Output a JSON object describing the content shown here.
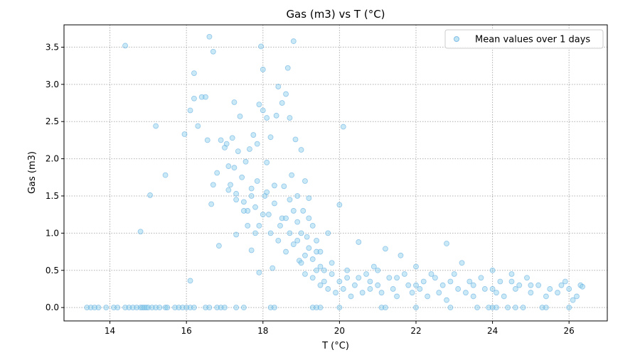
{
  "chart_data": {
    "type": "scatter",
    "title": "Gas (m3) vs T (°C)",
    "xlabel": "T (°C)",
    "ylabel": "Gas (m3)",
    "xlim": [
      12.8,
      27.0
    ],
    "ylim": [
      -0.18,
      3.8
    ],
    "xticks": [
      "14",
      "16",
      "18",
      "20",
      "22",
      "24",
      "26"
    ],
    "yticks": [
      "0.0",
      "0.5",
      "1.0",
      "1.5",
      "2.0",
      "2.5",
      "3.0",
      "3.5"
    ],
    "xtick_values": [
      14,
      16,
      18,
      20,
      22,
      24,
      26
    ],
    "ytick_values": [
      0.0,
      0.5,
      1.0,
      1.5,
      2.0,
      2.5,
      3.0,
      3.5
    ],
    "grid": true,
    "legend_position": "top-right",
    "marker_color": "#87CEEB",
    "marker_edge_color": "#5aa7dd",
    "series": [
      {
        "name": "Mean values over 1 days",
        "points": [
          [
            13.4,
            0
          ],
          [
            13.5,
            0
          ],
          [
            13.6,
            0
          ],
          [
            13.7,
            0
          ],
          [
            13.9,
            0
          ],
          [
            14.1,
            0
          ],
          [
            14.2,
            0
          ],
          [
            14.4,
            0
          ],
          [
            14.5,
            0
          ],
          [
            14.6,
            0
          ],
          [
            14.7,
            0
          ],
          [
            14.8,
            0
          ],
          [
            14.85,
            0
          ],
          [
            14.9,
            0
          ],
          [
            14.95,
            0
          ],
          [
            15.0,
            0
          ],
          [
            15.1,
            0
          ],
          [
            15.2,
            0
          ],
          [
            15.3,
            0
          ],
          [
            15.45,
            0
          ],
          [
            15.5,
            0
          ],
          [
            15.7,
            0
          ],
          [
            15.8,
            0
          ],
          [
            15.9,
            0
          ],
          [
            16.0,
            0
          ],
          [
            16.1,
            0
          ],
          [
            16.2,
            0
          ],
          [
            16.5,
            0
          ],
          [
            16.6,
            0
          ],
          [
            16.8,
            0
          ],
          [
            16.9,
            0
          ],
          [
            17.0,
            0
          ],
          [
            17.3,
            0
          ],
          [
            17.5,
            0
          ],
          [
            18.2,
            0
          ],
          [
            18.3,
            0
          ],
          [
            19.3,
            0
          ],
          [
            19.4,
            0
          ],
          [
            19.5,
            0
          ],
          [
            20.0,
            0
          ],
          [
            21.1,
            0
          ],
          [
            21.2,
            0
          ],
          [
            22.0,
            0
          ],
          [
            22.9,
            0
          ],
          [
            23.6,
            0
          ],
          [
            23.9,
            0
          ],
          [
            24.0,
            0
          ],
          [
            24.1,
            0
          ],
          [
            24.4,
            0
          ],
          [
            24.6,
            0
          ],
          [
            24.8,
            0
          ],
          [
            25.3,
            0
          ],
          [
            25.4,
            0
          ],
          [
            26.0,
            0
          ],
          [
            14.4,
            3.52
          ],
          [
            14.8,
            1.02
          ],
          [
            15.05,
            1.51
          ],
          [
            15.2,
            2.44
          ],
          [
            15.45,
            1.78
          ],
          [
            15.95,
            2.33
          ],
          [
            16.1,
            0.36
          ],
          [
            16.1,
            2.65
          ],
          [
            16.2,
            3.15
          ],
          [
            16.2,
            2.81
          ],
          [
            16.3,
            2.44
          ],
          [
            16.4,
            2.83
          ],
          [
            16.5,
            2.83
          ],
          [
            16.55,
            2.25
          ],
          [
            16.6,
            3.64
          ],
          [
            16.65,
            1.39
          ],
          [
            16.7,
            1.65
          ],
          [
            16.7,
            3.44
          ],
          [
            16.8,
            1.81
          ],
          [
            16.85,
            0.83
          ],
          [
            16.9,
            2.25
          ],
          [
            17.0,
            2.15
          ],
          [
            17.05,
            2.2
          ],
          [
            17.1,
            1.58
          ],
          [
            17.1,
            1.9
          ],
          [
            17.15,
            1.65
          ],
          [
            17.2,
            2.28
          ],
          [
            17.25,
            2.76
          ],
          [
            17.25,
            1.88
          ],
          [
            17.3,
            1.53
          ],
          [
            17.3,
            0.98
          ],
          [
            17.35,
            2.1
          ],
          [
            17.4,
            2.57
          ],
          [
            17.45,
            1.75
          ],
          [
            17.5,
            1.42
          ],
          [
            17.55,
            1.96
          ],
          [
            17.6,
            1.3
          ],
          [
            17.65,
            2.13
          ],
          [
            17.7,
            0.77
          ],
          [
            17.7,
            1.5
          ],
          [
            17.75,
            2.32
          ],
          [
            17.8,
            1.0
          ],
          [
            17.85,
            2.2
          ],
          [
            17.85,
            1.7
          ],
          [
            17.9,
            0.47
          ],
          [
            17.9,
            2.73
          ],
          [
            17.95,
            3.51
          ],
          [
            18.0,
            3.2
          ],
          [
            18.0,
            2.65
          ],
          [
            18.05,
            1.5
          ],
          [
            18.1,
            2.55
          ],
          [
            18.1,
            1.95
          ],
          [
            18.15,
            1.25
          ],
          [
            18.2,
            2.29
          ],
          [
            18.25,
            0.53
          ],
          [
            18.3,
            1.64
          ],
          [
            18.35,
            2.58
          ],
          [
            18.4,
            2.97
          ],
          [
            18.45,
            1.1
          ],
          [
            18.5,
            2.75
          ],
          [
            18.55,
            1.63
          ],
          [
            18.6,
            2.87
          ],
          [
            18.65,
            3.22
          ],
          [
            18.7,
            2.55
          ],
          [
            18.75,
            1.78
          ],
          [
            18.8,
            3.58
          ],
          [
            18.85,
            2.26
          ],
          [
            18.9,
            1.5
          ],
          [
            18.95,
            0.63
          ],
          [
            19.0,
            2.12
          ],
          [
            19.05,
            1.3
          ],
          [
            19.1,
            1.7
          ],
          [
            19.15,
            0.95
          ],
          [
            19.2,
            1.47
          ],
          [
            19.3,
            1.1
          ],
          [
            19.4,
            0.75
          ],
          [
            19.5,
            0.55
          ],
          [
            19.7,
            1.0
          ],
          [
            20.0,
            1.38
          ],
          [
            20.1,
            2.43
          ],
          [
            20.5,
            0.88
          ],
          [
            21.2,
            0.79
          ],
          [
            21.6,
            0.7
          ],
          [
            22.8,
            0.86
          ],
          [
            17.3,
            1.45
          ],
          [
            17.5,
            1.3
          ],
          [
            17.6,
            1.1
          ],
          [
            17.7,
            1.6
          ],
          [
            17.8,
            1.35
          ],
          [
            17.9,
            1.1
          ],
          [
            18.0,
            1.25
          ],
          [
            18.1,
            1.55
          ],
          [
            18.2,
            1.0
          ],
          [
            18.3,
            1.4
          ],
          [
            18.4,
            0.9
          ],
          [
            18.5,
            1.2
          ],
          [
            18.6,
            0.75
          ],
          [
            18.7,
            1.45
          ],
          [
            18.8,
            0.85
          ],
          [
            18.9,
            1.15
          ],
          [
            19.0,
            0.6
          ],
          [
            19.1,
            0.45
          ],
          [
            19.2,
            0.8
          ],
          [
            19.3,
            0.4
          ],
          [
            19.4,
            0.5
          ],
          [
            19.5,
            0.3
          ],
          [
            19.6,
            0.35
          ],
          [
            19.7,
            0.25
          ],
          [
            19.8,
            0.45
          ],
          [
            19.9,
            0.2
          ],
          [
            20.0,
            0.35
          ],
          [
            20.1,
            0.25
          ],
          [
            20.2,
            0.4
          ],
          [
            20.3,
            0.15
          ],
          [
            20.4,
            0.3
          ],
          [
            20.6,
            0.2
          ],
          [
            20.7,
            0.45
          ],
          [
            20.8,
            0.25
          ],
          [
            20.9,
            0.55
          ],
          [
            21.0,
            0.3
          ],
          [
            21.1,
            0.2
          ],
          [
            21.3,
            0.4
          ],
          [
            21.4,
            0.25
          ],
          [
            21.5,
            0.15
          ],
          [
            21.7,
            0.45
          ],
          [
            21.8,
            0.3
          ],
          [
            21.9,
            0.2
          ],
          [
            22.0,
            0.55
          ],
          [
            22.1,
            0.25
          ],
          [
            22.2,
            0.35
          ],
          [
            22.3,
            0.15
          ],
          [
            22.5,
            0.4
          ],
          [
            22.6,
            0.2
          ],
          [
            22.7,
            0.3
          ],
          [
            22.8,
            0.1
          ],
          [
            23.0,
            0.45
          ],
          [
            23.1,
            0.25
          ],
          [
            23.2,
            0.6
          ],
          [
            23.3,
            0.2
          ],
          [
            23.4,
            0.35
          ],
          [
            23.5,
            0.15
          ],
          [
            23.7,
            0.4
          ],
          [
            23.8,
            0.25
          ],
          [
            24.0,
            0.5
          ],
          [
            24.1,
            0.2
          ],
          [
            24.2,
            0.35
          ],
          [
            24.3,
            0.15
          ],
          [
            24.5,
            0.45
          ],
          [
            24.6,
            0.25
          ],
          [
            24.7,
            0.3
          ],
          [
            24.9,
            0.4
          ],
          [
            25.0,
            0.2
          ],
          [
            25.2,
            0.3
          ],
          [
            25.4,
            0.15
          ],
          [
            25.5,
            0.25
          ],
          [
            25.7,
            0.2
          ],
          [
            25.8,
            0.3
          ],
          [
            25.9,
            0.35
          ],
          [
            26.0,
            0.25
          ],
          [
            26.1,
            0.1
          ],
          [
            26.2,
            0.15
          ],
          [
            26.3,
            0.3
          ],
          [
            26.35,
            0.28
          ],
          [
            18.6,
            1.2
          ],
          [
            18.7,
            1.0
          ],
          [
            18.8,
            1.3
          ],
          [
            18.9,
            0.9
          ],
          [
            19.0,
            1.0
          ],
          [
            19.1,
            0.7
          ],
          [
            19.2,
            1.2
          ],
          [
            19.3,
            0.65
          ],
          [
            19.4,
            0.9
          ],
          [
            19.5,
            0.75
          ],
          [
            19.6,
            0.5
          ],
          [
            19.8,
            0.6
          ],
          [
            20.2,
            0.5
          ],
          [
            20.5,
            0.4
          ],
          [
            20.8,
            0.35
          ],
          [
            21.0,
            0.5
          ],
          [
            21.5,
            0.4
          ],
          [
            22.0,
            0.3
          ],
          [
            22.4,
            0.45
          ],
          [
            22.9,
            0.35
          ],
          [
            23.5,
            0.3
          ],
          [
            24.0,
            0.25
          ],
          [
            24.5,
            0.35
          ],
          [
            25.0,
            0.3
          ]
        ]
      }
    ]
  }
}
